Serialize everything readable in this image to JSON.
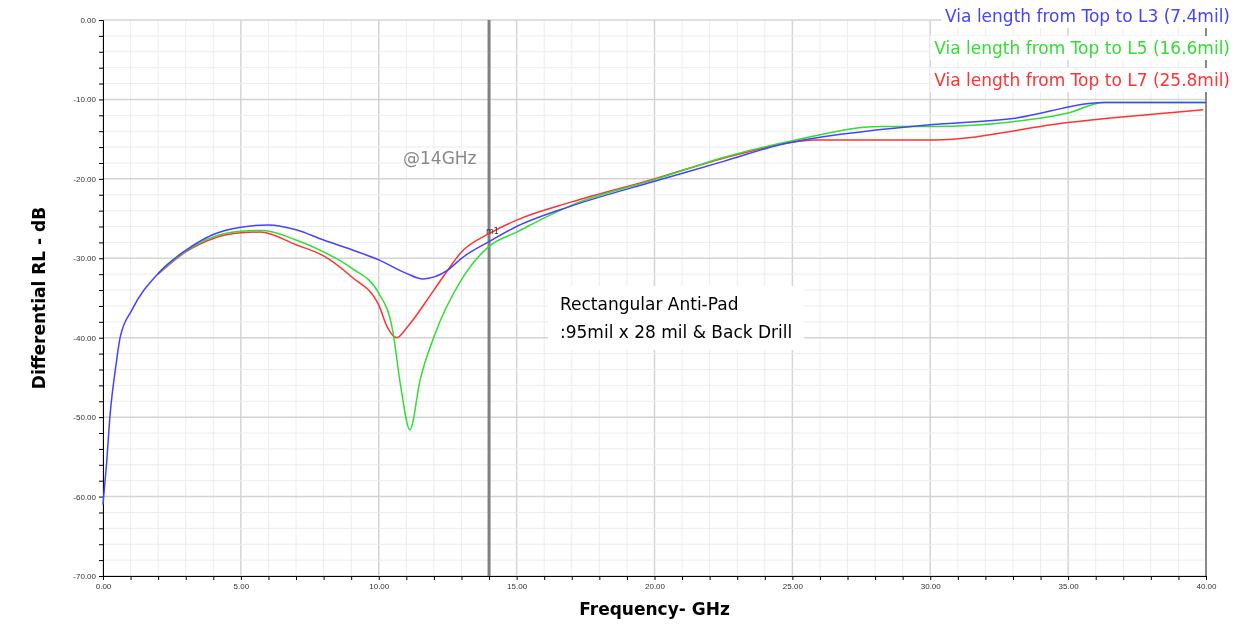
{
  "chart_data": {
    "type": "line",
    "xlabel": "Frequency- GHz",
    "ylabel": "Differential RL - dB",
    "xlim": [
      0,
      40
    ],
    "ylim": [
      -70,
      0
    ],
    "xticks": [
      {
        "value": 0,
        "label": "0.00"
      },
      {
        "value": 1,
        "label": null
      },
      {
        "value": 2,
        "label": null
      },
      {
        "value": 3,
        "label": null
      },
      {
        "value": 4,
        "label": null
      },
      {
        "value": 5,
        "label": "5.00"
      },
      {
        "value": 6,
        "label": null
      },
      {
        "value": 7,
        "label": null
      },
      {
        "value": 8,
        "label": null
      },
      {
        "value": 9,
        "label": null
      },
      {
        "value": 10,
        "label": "10.00"
      },
      {
        "value": 11,
        "label": null
      },
      {
        "value": 12,
        "label": null
      },
      {
        "value": 13,
        "label": null
      },
      {
        "value": 14,
        "label": null
      },
      {
        "value": 15,
        "label": "15.00"
      },
      {
        "value": 16,
        "label": null
      },
      {
        "value": 17,
        "label": null
      },
      {
        "value": 18,
        "label": null
      },
      {
        "value": 19,
        "label": null
      },
      {
        "value": 20,
        "label": "20.00"
      },
      {
        "value": 21,
        "label": null
      },
      {
        "value": 22,
        "label": null
      },
      {
        "value": 23,
        "label": null
      },
      {
        "value": 24,
        "label": null
      },
      {
        "value": 25,
        "label": "25.00"
      },
      {
        "value": 26,
        "label": null
      },
      {
        "value": 27,
        "label": null
      },
      {
        "value": 28,
        "label": null
      },
      {
        "value": 29,
        "label": null
      },
      {
        "value": 30,
        "label": "30.00"
      },
      {
        "value": 31,
        "label": null
      },
      {
        "value": 32,
        "label": null
      },
      {
        "value": 33,
        "label": null
      },
      {
        "value": 34,
        "label": null
      },
      {
        "value": 35,
        "label": "35.00"
      },
      {
        "value": 36,
        "label": null
      },
      {
        "value": 37,
        "label": null
      },
      {
        "value": 38,
        "label": null
      },
      {
        "value": 39,
        "label": null
      },
      {
        "value": 40,
        "label": "40.00"
      }
    ],
    "yticks": [
      {
        "value": -70,
        "label": "-70.00"
      },
      {
        "value": -68,
        "label": null
      },
      {
        "value": -66,
        "label": null
      },
      {
        "value": -64,
        "label": null
      },
      {
        "value": -62,
        "label": null
      },
      {
        "value": -60,
        "label": "-60.00"
      },
      {
        "value": -58,
        "label": null
      },
      {
        "value": -56,
        "label": null
      },
      {
        "value": -54,
        "label": null
      },
      {
        "value": -52,
        "label": null
      },
      {
        "value": -50,
        "label": "-50.00"
      },
      {
        "value": -48,
        "label": null
      },
      {
        "value": -46,
        "label": null
      },
      {
        "value": -44,
        "label": null
      },
      {
        "value": -42,
        "label": null
      },
      {
        "value": -40,
        "label": "-40.00"
      },
      {
        "value": -38,
        "label": null
      },
      {
        "value": -36,
        "label": null
      },
      {
        "value": -34,
        "label": null
      },
      {
        "value": -32,
        "label": null
      },
      {
        "value": -30,
        "label": "-30.00"
      },
      {
        "value": -28,
        "label": null
      },
      {
        "value": -26,
        "label": null
      },
      {
        "value": -24,
        "label": null
      },
      {
        "value": -22,
        "label": null
      },
      {
        "value": -20,
        "label": "-20.00"
      },
      {
        "value": -18,
        "label": null
      },
      {
        "value": -16,
        "label": null
      },
      {
        "value": -14,
        "label": null
      },
      {
        "value": -12,
        "label": null
      },
      {
        "value": -10,
        "label": "-10.00"
      },
      {
        "value": -8,
        "label": null
      },
      {
        "value": -6,
        "label": null
      },
      {
        "value": -4,
        "label": null
      },
      {
        "value": -2,
        "label": null
      },
      {
        "value": 0,
        "label": "0.00"
      }
    ],
    "grid": true,
    "legend": "top right",
    "marker": "none",
    "line_style": "solid",
    "ref_lines": [
      {
        "axis": "x",
        "value": 14,
        "color": "#808080"
      }
    ],
    "annotations": [
      "@14GHz",
      {
        "text": "m1",
        "x": 14,
        "y": -27.9
      },
      "Rectangular Anti-Pad\n:95mil x 28 mil & Back Drill"
    ],
    "series": [
      {
        "name": "Via length from Top to L3 (7.4mil)",
        "color": "#4444ff",
        "x": [
          0,
          0.13,
          0.25,
          0.48,
          0.62,
          1.05,
          2,
          3,
          4,
          5,
          6,
          7,
          8,
          9,
          10,
          11,
          11.6,
          12.5,
          13,
          14,
          15,
          17,
          20,
          22.5,
          24.55,
          28.2,
          30,
          33,
          36.3,
          40
        ],
        "values": [
          -61,
          -55.8,
          -50,
          -43.2,
          -40,
          -36.5,
          -31.9,
          -29,
          -27,
          -26.1,
          -25.8,
          -26.4,
          -27.7,
          -28.9,
          -30.2,
          -31.9,
          -32.6,
          -31.5,
          -30,
          -27.9,
          -26,
          -23.4,
          -20.3,
          -17.8,
          -15.7,
          -13.8,
          -13.2,
          -12.4,
          -10.4,
          -10.4
        ]
      },
      {
        "name": "Via length from Top to L5 (16.6mil)",
        "color": "#33dd33",
        "x": [
          2,
          3,
          4,
          5,
          5.8,
          7,
          8,
          9,
          10,
          10.5,
          10.8,
          11.13,
          11.5,
          12,
          13,
          14,
          15,
          17,
          20,
          22.5,
          25,
          28.2,
          30.1,
          33,
          35,
          36.3,
          40
        ],
        "values": [
          -31.9,
          -29.1,
          -27.3,
          -26.6,
          -26.5,
          -27.7,
          -29.2,
          -31.2,
          -34.4,
          -39,
          -46.2,
          -51.6,
          -45.3,
          -39.9,
          -32.7,
          -28.5,
          -26.7,
          -23.3,
          -20.1,
          -17.3,
          -15.2,
          -13.4,
          -13.4,
          -12.8,
          -11.7,
          -10.4,
          -10.4
        ]
      },
      {
        "name": "Via length from Top to L7 (25.8mil)",
        "color": "#ff3333",
        "x": [
          2,
          3,
          4,
          5,
          5.7,
          7,
          8,
          9,
          10,
          10.3,
          10.66,
          11,
          12,
          12.5,
          13,
          14,
          15,
          17,
          20,
          22.5,
          25,
          25.75,
          30.1,
          35,
          39.9
        ],
        "values": [
          -32,
          -29.2,
          -27.5,
          -26.8,
          -26.7,
          -28.3,
          -29.7,
          -32.3,
          -35.9,
          -38.6,
          -40,
          -38.8,
          -34,
          -31.5,
          -29.2,
          -26.9,
          -25.2,
          -22.9,
          -20,
          -17.4,
          -15.4,
          -15.1,
          -15.1,
          -12.9,
          -11.3
        ]
      }
    ]
  }
}
